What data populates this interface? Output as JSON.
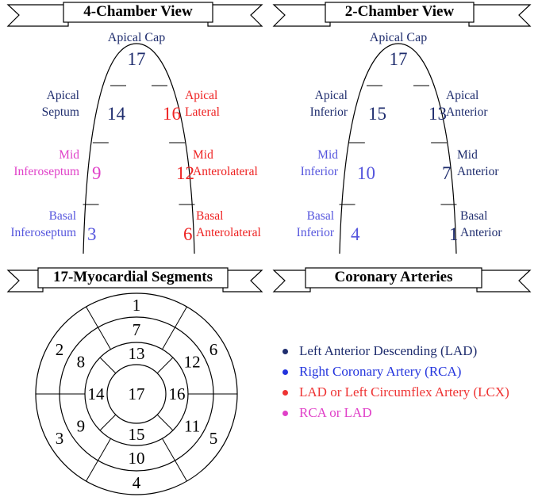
{
  "panels": [
    {
      "title": "4-Chamber View",
      "apex": {
        "label": "Apical Cap",
        "number": 17,
        "color": "#1f2d6e"
      },
      "segments": [
        {
          "label": [
            "Apical",
            "Septum"
          ],
          "number": 14,
          "color": "#1f2d6e"
        },
        {
          "label": [
            "Mid",
            "Inferoseptum"
          ],
          "number": 9,
          "color": "#e040c8"
        },
        {
          "label": [
            "Basal",
            "Inferoseptum"
          ],
          "number": 3,
          "color": "#5555dd"
        },
        {
          "label": [
            "Apical",
            "Lateral"
          ],
          "number": 16,
          "color": "#ee2222"
        },
        {
          "label": [
            "Mid",
            "Anterolateral"
          ],
          "number": 12,
          "color": "#ee2222"
        },
        {
          "label": [
            "Basal",
            "Anterolateral"
          ],
          "number": 6,
          "color": "#ee2222"
        }
      ]
    },
    {
      "title": "2-Chamber View",
      "apex": {
        "label": "Apical Cap",
        "number": 17,
        "color": "#1f2d6e"
      },
      "segments": [
        {
          "label": [
            "Apical",
            "Inferior"
          ],
          "number": 15,
          "color": "#1f2d6e"
        },
        {
          "label": [
            "Mid",
            "Inferior"
          ],
          "number": 10,
          "color": "#5555dd"
        },
        {
          "label": [
            "Basal",
            "Inferior"
          ],
          "number": 4,
          "color": "#5555dd"
        },
        {
          "label": [
            "Apical",
            "Anterior"
          ],
          "number": 13,
          "color": "#1f2d6e"
        },
        {
          "label": [
            "Mid",
            "Anterior"
          ],
          "number": 7,
          "color": "#1f2d6e"
        },
        {
          "label": [
            "Basal",
            "Anterior"
          ],
          "number": 1,
          "color": "#1f2d6e"
        }
      ]
    }
  ],
  "bullseye": {
    "title": "17-Myocardial Segments",
    "segments": [
      1,
      2,
      3,
      4,
      5,
      6,
      7,
      8,
      9,
      10,
      11,
      12,
      13,
      14,
      15,
      16,
      17
    ]
  },
  "legend": {
    "title": "Coronary Arteries",
    "items": [
      {
        "text": "Left Anterior Descending (LAD)",
        "color": "#1f2d6e"
      },
      {
        "text": "Right Coronary Artery (RCA)",
        "color": "#2233dd"
      },
      {
        "text": "LAD or Left Circumflex Artery (LCX)",
        "color": "#ee3333"
      },
      {
        "text": "RCA or LAD",
        "color": "#e040c8"
      }
    ]
  }
}
